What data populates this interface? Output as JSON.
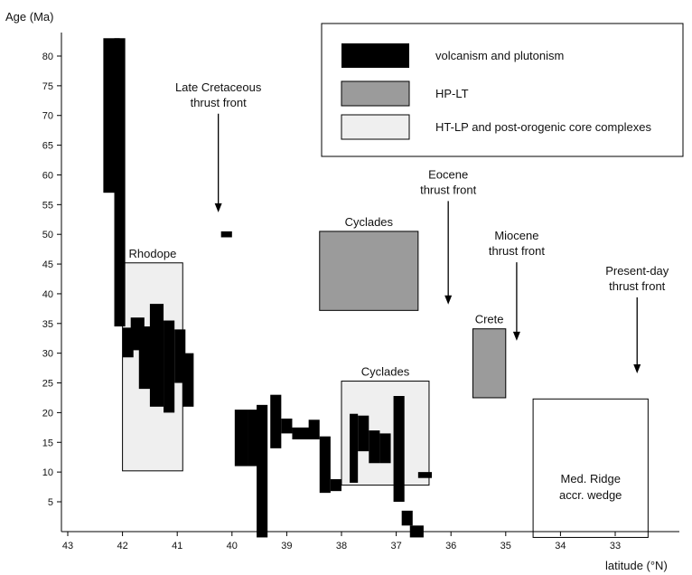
{
  "axes": {
    "y_label": "Age (Ma)",
    "x_label": "latitude (°N)",
    "y_ticks": [
      5,
      10,
      15,
      20,
      25,
      30,
      35,
      40,
      45,
      50,
      55,
      60,
      65,
      70,
      75,
      80
    ],
    "x_ticks": [
      43,
      42,
      41,
      40,
      39,
      38,
      37,
      36,
      35,
      34,
      33
    ],
    "x_range": [
      43.1,
      32.3
    ],
    "y_range": [
      -1,
      85
    ]
  },
  "colors": {
    "volcanism": "#000000",
    "hp_lt": "#9b9b9b",
    "ht_lp": "#efefef",
    "outline": "#000000"
  },
  "legend": {
    "items": [
      {
        "label": "volcanism and plutonism",
        "kind": "volcanism"
      },
      {
        "label": "HP-LT",
        "kind": "hp_lt"
      },
      {
        "label": "HT-LP and post-orogenic core complexes",
        "kind": "ht_lp"
      }
    ]
  },
  "regions": [
    {
      "label": "Rhodope",
      "kind": "ht_lp",
      "lat": [
        42.0,
        40.9
      ],
      "age": [
        10.2,
        45.2
      ]
    },
    {
      "label": "Cyclades",
      "kind": "hp_lt",
      "lat": [
        38.4,
        36.6
      ],
      "age": [
        37.2,
        50.5
      ]
    },
    {
      "label": "Cyclades",
      "kind": "ht_lp",
      "lat": [
        38.0,
        36.4
      ],
      "age": [
        7.8,
        25.3
      ]
    },
    {
      "label": "Crete",
      "kind": "hp_lt",
      "lat": [
        35.6,
        35.0
      ],
      "age": [
        22.5,
        34.1
      ]
    }
  ],
  "ridge": {
    "label_lines": [
      "Med. Ridge",
      "accr. wedge"
    ],
    "lat": [
      34.5,
      32.4
    ],
    "age": [
      -1,
      22.3
    ]
  },
  "volcanism_bars": [
    {
      "lat": [
        42.35,
        42.05
      ],
      "age": [
        57,
        83
      ]
    },
    {
      "lat": [
        42.15,
        41.95
      ],
      "age": [
        34.5,
        83
      ]
    },
    {
      "lat": [
        42.0,
        41.8
      ],
      "age": [
        29.3,
        34.3
      ]
    },
    {
      "lat": [
        41.85,
        41.6
      ],
      "age": [
        30.5,
        36
      ]
    },
    {
      "lat": [
        41.7,
        41.4
      ],
      "age": [
        24,
        34.5
      ]
    },
    {
      "lat": [
        41.5,
        41.25
      ],
      "age": [
        21,
        38.3
      ]
    },
    {
      "lat": [
        41.25,
        41.05
      ],
      "age": [
        20,
        35.5
      ]
    },
    {
      "lat": [
        41.05,
        40.85
      ],
      "age": [
        25,
        34
      ]
    },
    {
      "lat": [
        40.9,
        40.7
      ],
      "age": [
        21,
        30
      ]
    },
    {
      "lat": [
        40.2,
        40.0
      ],
      "age": [
        49.5,
        50.5
      ]
    },
    {
      "lat": [
        39.95,
        39.7
      ],
      "age": [
        11,
        20.5
      ]
    },
    {
      "lat": [
        39.7,
        39.45
      ],
      "age": [
        11,
        20.5
      ]
    },
    {
      "lat": [
        39.55,
        39.35
      ],
      "age": [
        -1,
        21.3
      ]
    },
    {
      "lat": [
        39.3,
        39.1
      ],
      "age": [
        14,
        23
      ]
    },
    {
      "lat": [
        39.1,
        38.9
      ],
      "age": [
        16.5,
        19
      ]
    },
    {
      "lat": [
        38.9,
        38.55
      ],
      "age": [
        15.5,
        17.5
      ]
    },
    {
      "lat": [
        38.6,
        38.4
      ],
      "age": [
        15.5,
        18.8
      ]
    },
    {
      "lat": [
        38.4,
        38.2
      ],
      "age": [
        6.5,
        16
      ]
    },
    {
      "lat": [
        38.2,
        38.0
      ],
      "age": [
        6.8,
        8.8
      ]
    },
    {
      "lat": [
        37.85,
        37.7
      ],
      "age": [
        8.2,
        19.8
      ]
    },
    {
      "lat": [
        37.7,
        37.5
      ],
      "age": [
        13.5,
        19.5
      ]
    },
    {
      "lat": [
        37.5,
        37.3
      ],
      "age": [
        11.5,
        17
      ]
    },
    {
      "lat": [
        37.3,
        37.1
      ],
      "age": [
        11.5,
        16.5
      ]
    },
    {
      "lat": [
        37.05,
        36.85
      ],
      "age": [
        5,
        22.8
      ]
    },
    {
      "lat": [
        36.9,
        36.7
      ],
      "age": [
        1,
        3.5
      ]
    },
    {
      "lat": [
        36.75,
        36.5
      ],
      "age": [
        -1,
        1
      ]
    },
    {
      "lat": [
        36.6,
        36.35
      ],
      "age": [
        9,
        10
      ]
    }
  ],
  "thrust_fronts": [
    {
      "label_lines": [
        "Late Cretaceous",
        "thrust front"
      ],
      "lat": 40.25,
      "age_top": 70.3,
      "age_tip": 53.7
    },
    {
      "label_lines": [
        "Eocene",
        "thrust front"
      ],
      "lat": 36.05,
      "age_top": 55.6,
      "age_tip": 38.2
    },
    {
      "label_lines": [
        "Miocene",
        "thrust front"
      ],
      "lat": 34.8,
      "age_top": 45.3,
      "age_tip": 32.1
    },
    {
      "label_lines": [
        "Present-day",
        "thrust front"
      ],
      "lat": 32.6,
      "age_top": 39.4,
      "age_tip": 26.6
    }
  ]
}
